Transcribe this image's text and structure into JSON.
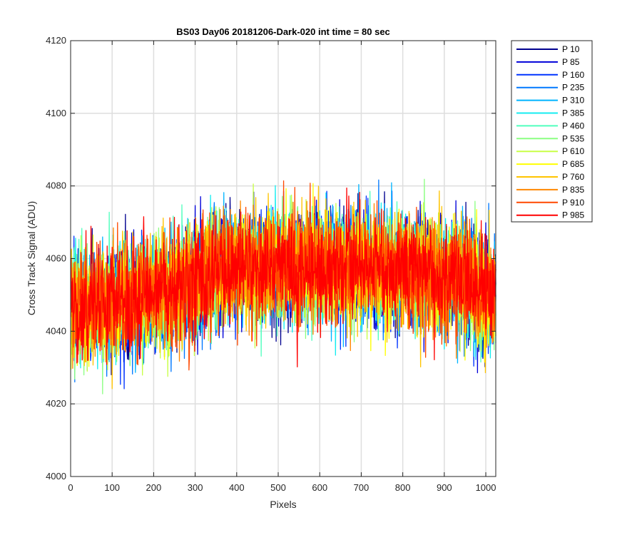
{
  "chart_data": {
    "type": "line",
    "title": "BS03 Day06 20181206-Dark-020 int time = 80 sec",
    "xlabel": "Pixels",
    "ylabel": "Cross Track Signal (ADU)",
    "xlim": [
      0,
      1024
    ],
    "ylim": [
      4000,
      4120
    ],
    "xticks": [
      0,
      100,
      200,
      300,
      400,
      500,
      600,
      700,
      800,
      900,
      1000
    ],
    "yticks": [
      4000,
      4020,
      4040,
      4060,
      4080,
      4100,
      4120
    ],
    "grid": true,
    "legend_position": "outside-top-right",
    "x": {
      "start": 1,
      "end": 1024,
      "step": 1
    },
    "noise_model": {
      "baseline": [
        [
          0,
          4047
        ],
        [
          150,
          4049
        ],
        [
          250,
          4052
        ],
        [
          350,
          4057
        ],
        [
          500,
          4058
        ],
        [
          650,
          4058
        ],
        [
          800,
          4057
        ],
        [
          950,
          4054
        ],
        [
          1024,
          4050
        ]
      ],
      "amplitude_adu": 12
    },
    "series": [
      {
        "name": "P 10",
        "color": "#00008f"
      },
      {
        "name": "P 85",
        "color": "#0000d9"
      },
      {
        "name": "P 160",
        "color": "#0033ff"
      },
      {
        "name": "P 235",
        "color": "#0078ff"
      },
      {
        "name": "P 310",
        "color": "#00b4ff"
      },
      {
        "name": "P 385",
        "color": "#14ecf0"
      },
      {
        "name": "P 460",
        "color": "#50ffbe"
      },
      {
        "name": "P 535",
        "color": "#8cff82"
      },
      {
        "name": "P 610",
        "color": "#c8ff46"
      },
      {
        "name": "P 685",
        "color": "#ffff00"
      },
      {
        "name": "P 760",
        "color": "#ffc400"
      },
      {
        "name": "P 835",
        "color": "#ff8700"
      },
      {
        "name": "P 910",
        "color": "#ff4800"
      },
      {
        "name": "P 985",
        "color": "#ff0000"
      }
    ]
  }
}
